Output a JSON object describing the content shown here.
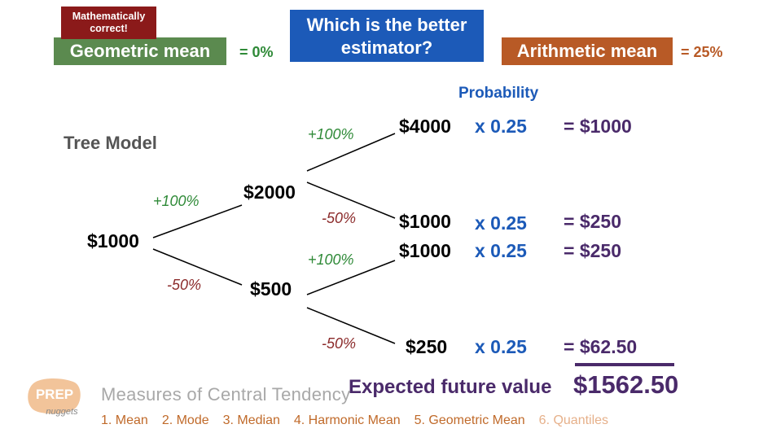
{
  "header": {
    "math_correct_badge": "Mathematically correct!",
    "geometric_mean_label": "Geometric mean",
    "geometric_mean_value": "= 0%",
    "question_line1": "Which is the better",
    "question_line2": "estimator?",
    "arithmetic_mean_label": "Arithmetic mean",
    "arithmetic_mean_value": "= 25%"
  },
  "probability_header": "Probability",
  "tree_title": "Tree Model",
  "tree": {
    "root": "$1000",
    "level1_up": "$2000",
    "level1_down": "$500",
    "leaves": [
      "$4000",
      "$1000",
      "$1000",
      "$250"
    ],
    "edge_labels": {
      "root_up": "+100%",
      "root_down": "-50%",
      "up_up": "+100%",
      "up_down": "-50%",
      "down_up": "+100%",
      "down_down": "-50%"
    },
    "probabilities": [
      "x 0.25",
      "x 0.25",
      "x 0.25",
      "x 0.25"
    ],
    "results": [
      "= $1000",
      "= $250",
      "= $250",
      "= $62.50"
    ]
  },
  "expected": {
    "label": "Expected future value",
    "value": "$1562.50"
  },
  "footer": {
    "logo_text_top": "PREP",
    "logo_text_bottom": "nuggets",
    "title": "Measures of Central Tendency",
    "items": [
      "1. Mean",
      "2. Mode",
      "3. Median",
      "4. Harmonic Mean",
      "5. Geometric Mean",
      "6. Quantiles"
    ]
  },
  "colors": {
    "blue": "#1c5ab8",
    "green": "#5b8a4f",
    "orange": "#b85a26",
    "dark_red": "#8b1a1a",
    "purple": "#4a2a6a"
  }
}
